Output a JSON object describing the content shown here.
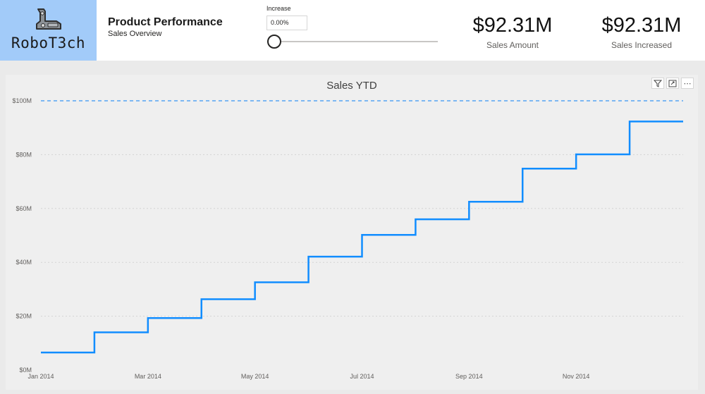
{
  "logo": {
    "text": "RoboT3ch",
    "icon": "robot-arm-icon"
  },
  "header": {
    "title": "Product Performance",
    "subtitle": "Sales Overview"
  },
  "slicer": {
    "label": "Increase",
    "value": "0.00%",
    "fraction": 0
  },
  "kpis": [
    {
      "value": "$92.31M",
      "label": "Sales Amount"
    },
    {
      "value": "$92.31M",
      "label": "Sales Increased"
    }
  ],
  "chart_toolbar": {
    "filter_icon": "filter-icon",
    "focus_icon": "focus-mode-icon",
    "more_icon": "more-options-icon",
    "more_glyph": "⋯"
  },
  "colors": {
    "line": "#118dff",
    "target": "#7cb7f2",
    "logo_bg": "#a2cbf9"
  },
  "chart_data": {
    "type": "line",
    "title": "Sales YTD",
    "xlabel": "",
    "ylabel": "",
    "step": true,
    "grid": true,
    "ylim": [
      0,
      100
    ],
    "y_unit": "M",
    "y_ticks": [
      "$0M",
      "$20M",
      "$40M",
      "$60M",
      "$80M",
      "$100M"
    ],
    "x_ticks": [
      "Jan 2014",
      "Mar 2014",
      "May 2014",
      "Jul 2014",
      "Sep 2014",
      "Nov 2014"
    ],
    "target_line": 100,
    "series": [
      {
        "months": [
          "Jan 2014",
          "Feb 2014",
          "Mar 2014",
          "Apr 2014",
          "May 2014",
          "Jun 2014",
          "Jul 2014",
          "Aug 2014",
          "Sep 2014",
          "Oct 2014",
          "Nov 2014",
          "Dec 2014"
        ],
        "values": [
          6.5,
          14.0,
          19.3,
          26.3,
          32.6,
          42.1,
          50.2,
          56.0,
          62.5,
          74.8,
          80.1,
          92.3
        ]
      }
    ]
  }
}
